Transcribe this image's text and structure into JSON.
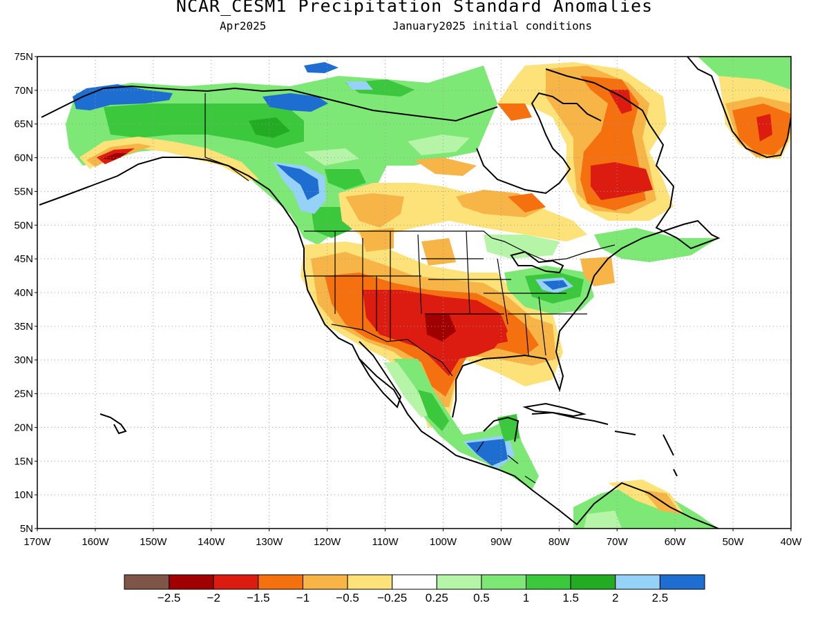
{
  "title": "NCAR_CESM1 Precipitation Standard Anomalies",
  "valid_month": "Apr2025",
  "init_label": "January2025 initial conditions",
  "lat_labels": [
    "75N",
    "70N",
    "65N",
    "60N",
    "55N",
    "50N",
    "45N",
    "40N",
    "35N",
    "30N",
    "25N",
    "20N",
    "15N",
    "10N",
    "5N"
  ],
  "lon_labels": [
    "170W",
    "160W",
    "150W",
    "140W",
    "130W",
    "120W",
    "110W",
    "100W",
    "90W",
    "80W",
    "70W",
    "60W",
    "50W",
    "40W"
  ],
  "colorbar": {
    "colors": [
      "#7f5547",
      "#a00000",
      "#dc1c10",
      "#f5700e",
      "#f7b548",
      "#fde279",
      "#ffffff",
      "#b6f5a8",
      "#7de875",
      "#3cc83c",
      "#23ac23",
      "#96d2f7",
      "#1e6ed2"
    ],
    "labels": [
      "-2.5",
      "-2",
      "-1.5",
      "-1",
      "-0.5",
      "-0.25",
      "0.25",
      "0.5",
      "1",
      "1.5",
      "2",
      "2.5"
    ]
  },
  "anomaly_regions": [
    {
      "region": "Southern Plains / Texas",
      "category": "-2"
    },
    {
      "region": "Southwest US",
      "category": "-1.5"
    },
    {
      "region": "Quebec / Labrador",
      "category": "-1.5"
    },
    {
      "region": "Greenland south",
      "category": "-1.5"
    },
    {
      "region": "Southern Alaska coast",
      "category": "-2"
    },
    {
      "region": "Northern Alaska",
      "category": "2.5"
    },
    {
      "region": "British Columbia interior",
      "category": "2.5"
    },
    {
      "region": "Central America (Guatemala)",
      "category": "2.5"
    },
    {
      "region": "Ohio Valley",
      "category": "2.5"
    },
    {
      "region": "Yukon / Northwest Territories",
      "category": "1.5"
    },
    {
      "region": "Western Mexico",
      "category": "0.5"
    }
  ]
}
